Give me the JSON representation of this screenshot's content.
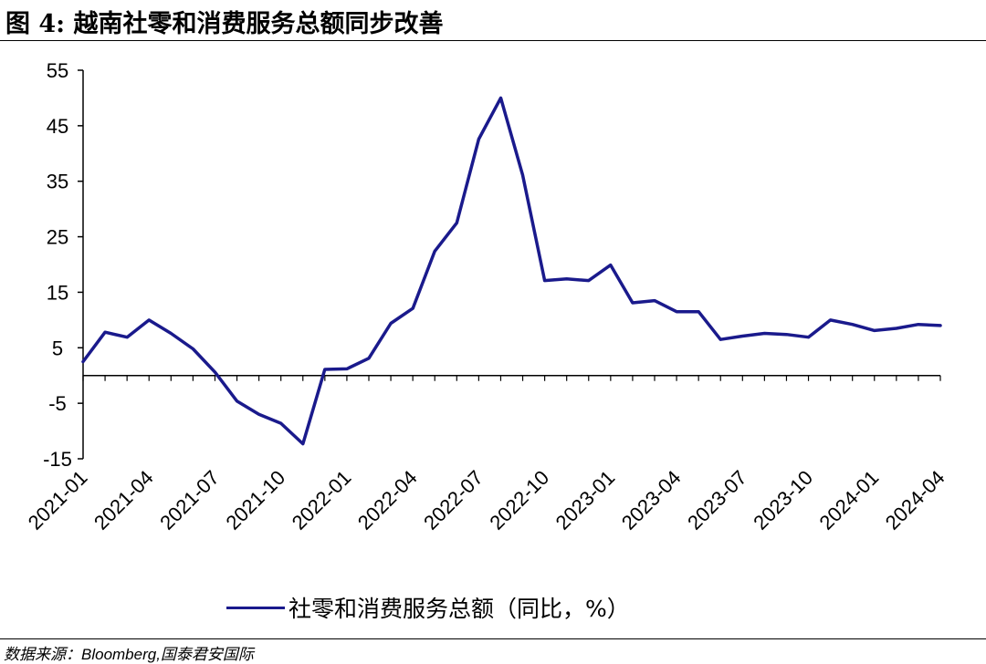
{
  "header": {
    "title": "图 4: 越南社零和消费服务总额同步改善"
  },
  "footer": {
    "source": "数据来源：Bloomberg,国泰君安国际"
  },
  "chart_data": {
    "type": "line",
    "title": "",
    "xlabel": "",
    "ylabel": "",
    "ylim": [
      -15,
      55
    ],
    "yticks": [
      55,
      45,
      35,
      25,
      15,
      5,
      -5,
      -15
    ],
    "xtick_labels": [
      "2021-01",
      "2021-04",
      "2021-07",
      "2021-10",
      "2022-01",
      "2022-04",
      "2022-07",
      "2022-10",
      "2023-01",
      "2023-04",
      "2023-07",
      "2023-10",
      "2024-01",
      "2024-04"
    ],
    "x": [
      "2021-01",
      "2021-02",
      "2021-03",
      "2021-04",
      "2021-05",
      "2021-06",
      "2021-07",
      "2021-08",
      "2021-09",
      "2021-10",
      "2021-11",
      "2021-12",
      "2022-01",
      "2022-02",
      "2022-03",
      "2022-04",
      "2022-05",
      "2022-06",
      "2022-07",
      "2022-08",
      "2022-09",
      "2022-10",
      "2022-11",
      "2022-12",
      "2023-01",
      "2023-02",
      "2023-03",
      "2023-04",
      "2023-05",
      "2023-06",
      "2023-07",
      "2023-08",
      "2023-09",
      "2023-10",
      "2023-11",
      "2023-12",
      "2024-01",
      "2024-02",
      "2024-03",
      "2024-04"
    ],
    "series": [
      {
        "name": "社零和消费服务总额（同比，%）",
        "color": "#1a1a8c",
        "values": [
          2.5,
          7.8,
          6.9,
          10.0,
          7.6,
          4.8,
          0.6,
          -4.6,
          -7.0,
          -8.6,
          -12.3,
          1.1,
          1.2,
          3.1,
          9.4,
          12.1,
          22.4,
          27.5,
          42.6,
          50.0,
          36.1,
          17.1,
          17.4,
          17.1,
          19.9,
          13.1,
          13.5,
          11.5,
          11.5,
          6.5,
          7.1,
          7.6,
          7.4,
          6.9,
          10.0,
          9.2,
          8.1,
          8.5,
          9.2,
          9.0
        ]
      }
    ],
    "legend": "bottom",
    "grid": false
  }
}
